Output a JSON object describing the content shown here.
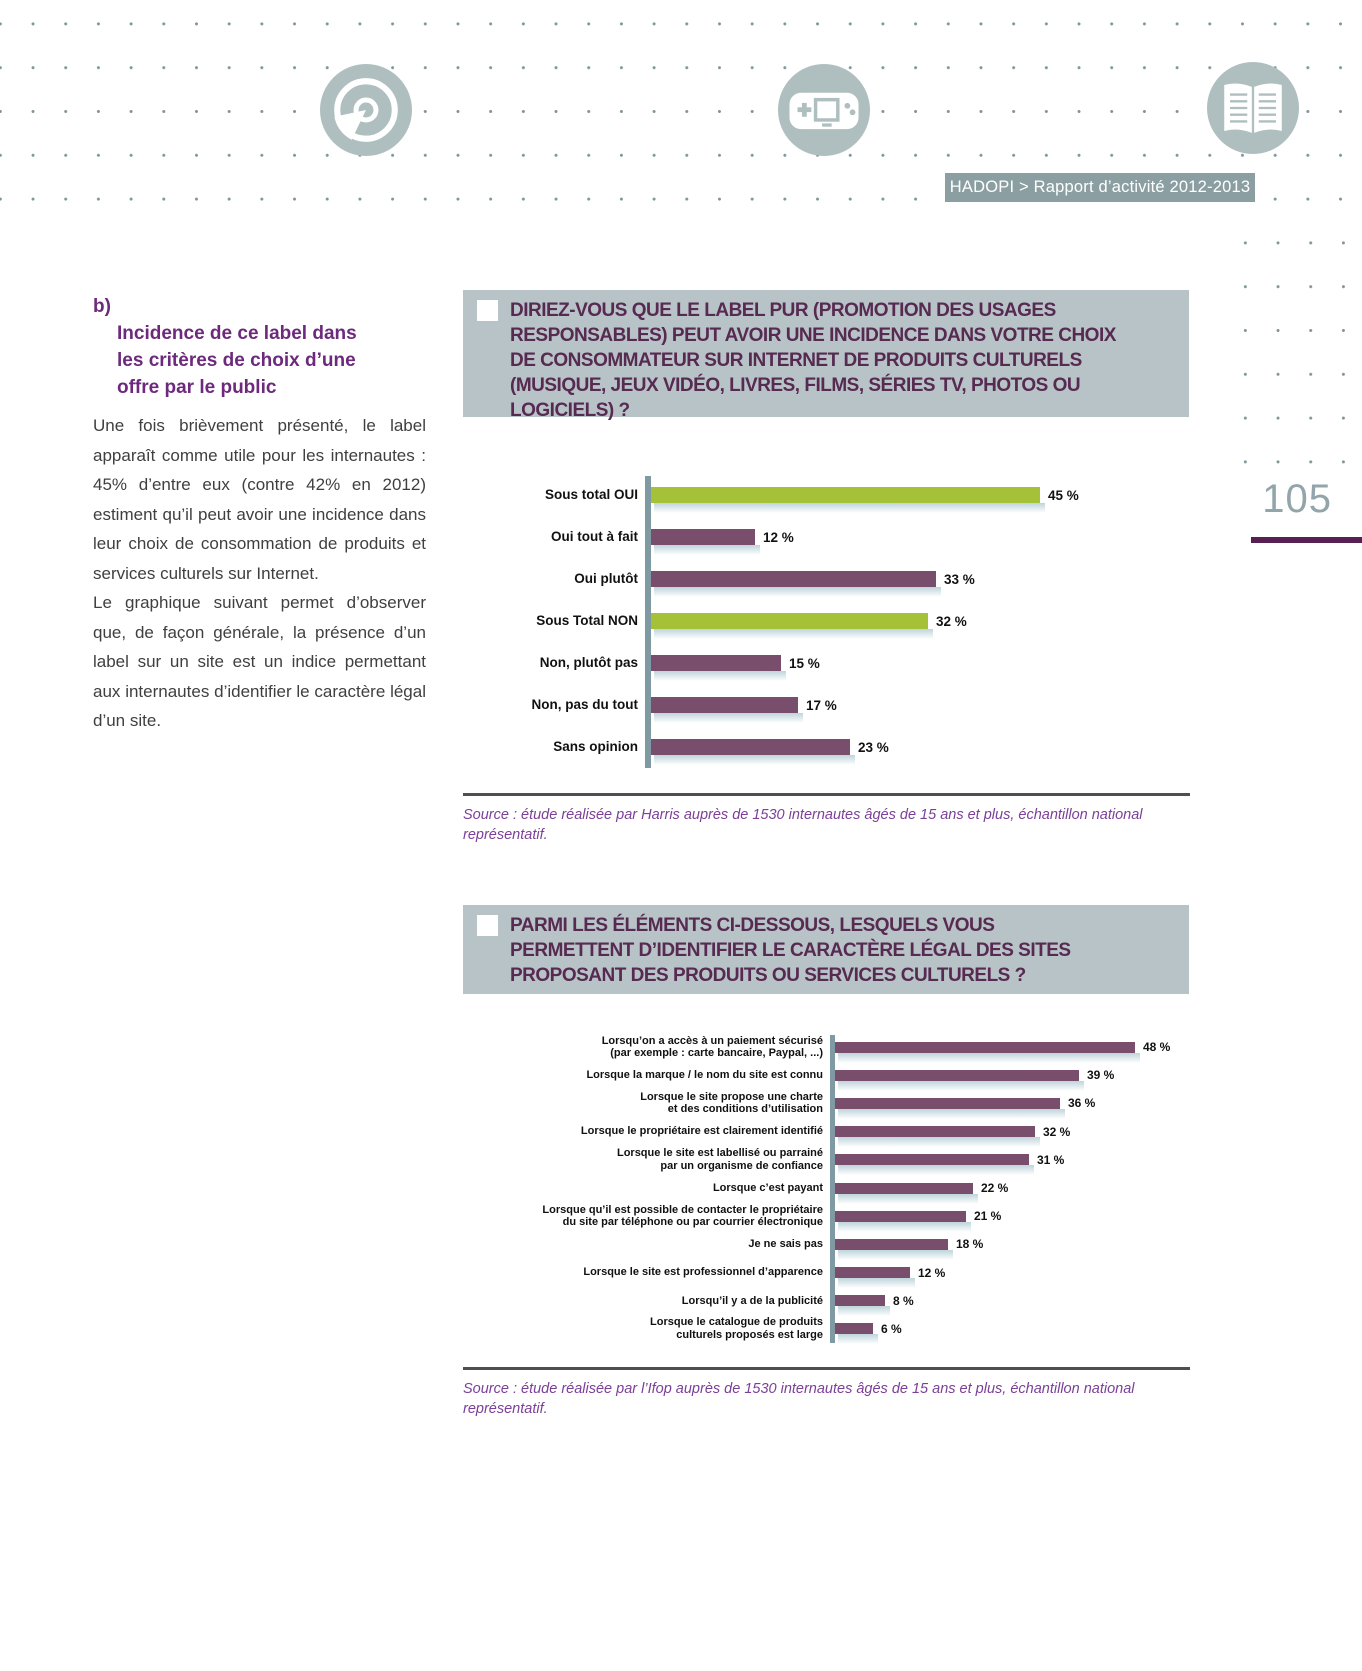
{
  "page": {
    "header_badge": "HADOPI > Rapport d’activité 2012-2013",
    "page_number": "105",
    "icons": [
      "cd-icon",
      "game-console-icon",
      "open-book-icon"
    ],
    "colors": {
      "badge_bg": "#8b9fa2",
      "icon_circle": "#afbfbf",
      "dot_grid": "#7e969b",
      "question_block_bg": "#b7c3c6",
      "question_text": "#572a52",
      "heading_purple": "#6d2a7c",
      "source_purple": "#7b3f98",
      "page_rule_purple": "#581f52",
      "chart_axis": "#7f9aa3",
      "bar_purple": "#794e6c",
      "bar_green": "#a5c138"
    }
  },
  "article": {
    "heading_prefix": "b)",
    "heading": "Incidence de ce label dans les critères de choix d’une offre par le public",
    "heading_lines": [
      "Incidence de ce label dans",
      "les critères de choix d’une",
      "offre par le public"
    ],
    "paragraphs": [
      "Une fois brièvement présenté, le label apparaît comme utile pour les internautes : 45% d’entre eux (contre 42% en 2012) estiment qu’il peut avoir une incidence dans leur choix de consommation de produits et services culturels sur Internet.",
      "Le graphique suivant permet d’observer que, de façon générale, la présence d’un label sur un site est un indice permettant aux internautes d’identifier le caractère légal d’un site."
    ]
  },
  "chart_data": [
    {
      "type": "bar",
      "orientation": "horizontal",
      "title": "DIRIEZ-VOUS QUE LE LABEL PUR (PROMOTION DES USAGES RESPONSABLES) PEUT AVOIR UNE INCIDENCE DANS VOTRE CHOIX DE CONSOMMATEUR SUR INTERNET DE PRODUITS CULTURELS (MUSIQUE, JEUX VIDÉO, LIVRES, FILMS, SÉRIES TV, PHOTOS OU LOGICIELS) ?",
      "title_lines": [
        "DIRIEZ-VOUS QUE LE LABEL PUR (PROMOTION DES USAGES",
        "RESPONSABLES) PEUT AVOIR UNE INCIDENCE DANS VOTRE CHOIX",
        "DE CONSOMMATEUR SUR INTERNET DE PRODUITS CULTURELS",
        "(MUSIQUE, JEUX VIDÉO, LIVRES, FILMS, SÉRIES TV, PHOTOS OU",
        "LOGICIELS) ?"
      ],
      "categories": [
        "Sous total OUI",
        "Oui tout à fait",
        "Oui plutôt",
        "Sous Total NON",
        "Non, plutôt pas",
        "Non, pas du tout",
        "Sans opinion"
      ],
      "values": [
        45,
        12,
        33,
        32,
        15,
        17,
        23
      ],
      "value_labels": [
        "45 %",
        "12 %",
        "33 %",
        "32 %",
        "15 %",
        "17 %",
        "23 %"
      ],
      "unit": "%",
      "xlim": [
        0,
        50
      ],
      "grid": false,
      "bar_color": "#794e6c",
      "highlight_color": "#a5c138",
      "highlight_indices": [
        0,
        3
      ],
      "source": "Source : étude réalisée par Harris auprès de 1530 internautes âgés de 15 ans et plus, échantillon national représentatif."
    },
    {
      "type": "bar",
      "orientation": "horizontal",
      "title": "PARMI LES ÉLÉMENTS CI-DESSOUS, LESQUELS VOUS PERMETTENT D’IDENTIFIER LE CARACTÈRE LÉGAL DES SITES PROPOSANT DES PRODUITS OU SERVICES CULTURELS ?",
      "title_lines": [
        "PARMI LES ÉLÉMENTS CI-DESSOUS, LESQUELS VOUS",
        "PERMETTENT D’IDENTIFIER LE CARACTÈRE LÉGAL DES SITES",
        "PROPOSANT DES PRODUITS OU SERVICES CULTURELS ?"
      ],
      "categories": [
        "Lorsqu’on a accès à un paiement sécurisé\n(par exemple : carte bancaire, Paypal, ...)",
        "Lorsque la marque / le nom du site est connu",
        "Lorsque le site propose une charte\net des conditions d’utilisation",
        "Lorsque le propriétaire est clairement identifié",
        "Lorsque le site est labellisé ou parrainé\npar un organisme de confiance",
        "Lorsque c’est payant",
        "Lorsque qu’il est possible de contacter le propriétaire\ndu site par téléphone ou par courrier électronique",
        "Je ne sais pas",
        "Lorsque le site est professionnel d’apparence",
        "Lorsqu’il y a de la publicité",
        "Lorsque le catalogue de produits\nculturels proposés est large"
      ],
      "values": [
        48,
        39,
        36,
        32,
        31,
        22,
        21,
        18,
        12,
        8,
        6
      ],
      "value_labels": [
        "48 %",
        "39 %",
        "36 %",
        "32 %",
        "31 %",
        "22 %",
        "21 %",
        "18 %",
        "12 %",
        "8 %",
        "6 %"
      ],
      "unit": "%",
      "xlim": [
        0,
        50
      ],
      "grid": false,
      "bar_color": "#794e6c",
      "highlight_color": "#a5c138",
      "highlight_indices": [],
      "source": "Source : étude réalisée par l’Ifop auprès de 1530 internautes âgés de 15 ans et plus, échantillon national représentatif."
    }
  ]
}
